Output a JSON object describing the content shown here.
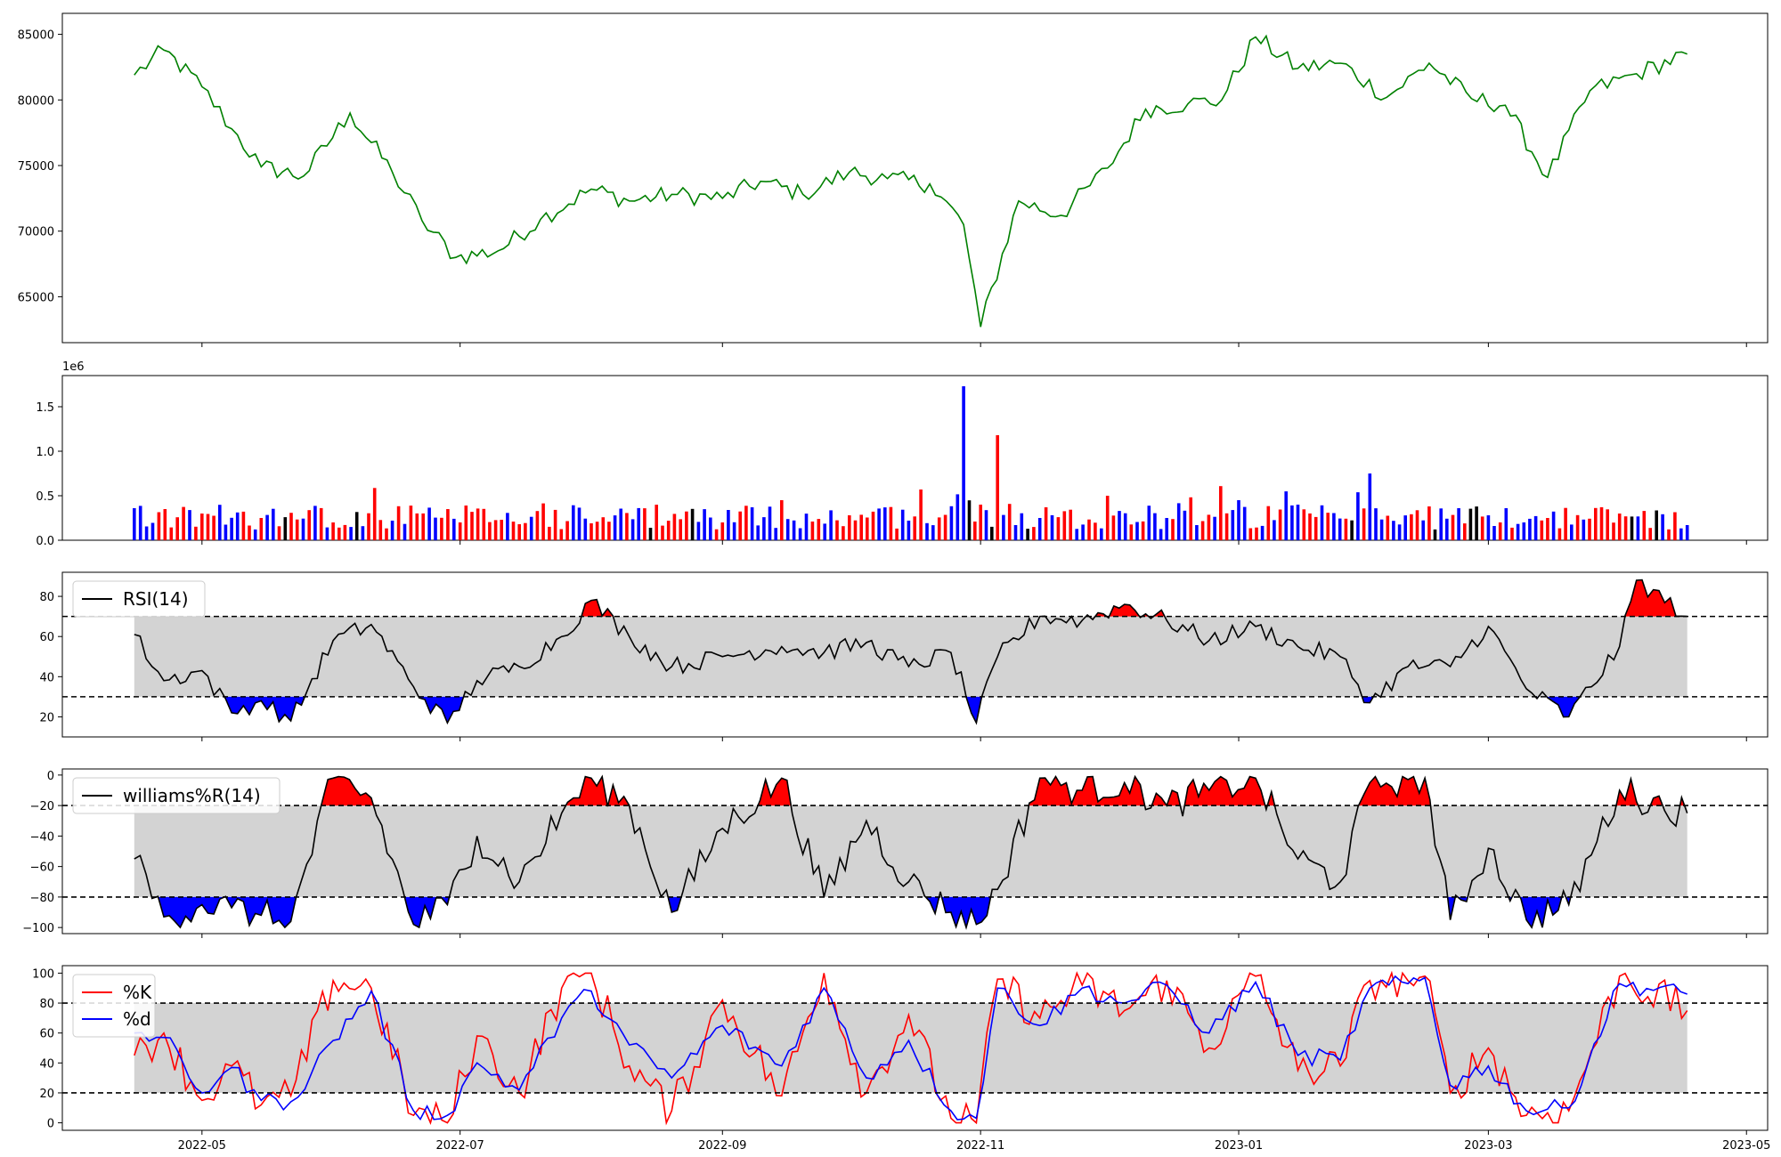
{
  "page": {
    "background": "#ffffff"
  },
  "chart_data": [
    {
      "type": "line",
      "panel": "price",
      "color": "#008000",
      "ylim": [
        61500,
        86600
      ],
      "yticks": [
        "65000",
        "70000",
        "75000",
        "80000",
        "85000"
      ],
      "ytick_values": [
        65000,
        70000,
        75000,
        80000,
        85000
      ],
      "x": [
        "2022-04-15",
        "2022-04-22",
        "2022-05-01",
        "2022-05-08",
        "2022-05-15",
        "2022-05-25",
        "2022-06-05",
        "2022-06-15",
        "2022-06-22",
        "2022-06-30",
        "2022-07-10",
        "2022-07-20",
        "2022-08-01",
        "2022-08-10",
        "2022-08-20",
        "2022-09-01",
        "2022-09-10",
        "2022-09-20",
        "2022-10-01",
        "2022-10-10",
        "2022-10-20",
        "2022-10-28",
        "2022-11-01",
        "2022-11-10",
        "2022-11-20",
        "2022-12-01",
        "2022-12-10",
        "2022-12-20",
        "2022-12-28",
        "2023-01-05",
        "2023-01-15",
        "2023-01-25",
        "2023-02-05",
        "2023-02-15",
        "2023-02-25",
        "2023-03-05",
        "2023-03-15",
        "2023-03-25",
        "2023-04-05",
        "2023-04-17"
      ],
      "values": [
        81900,
        83800,
        81000,
        77800,
        74900,
        74200,
        79000,
        74500,
        70800,
        68000,
        68500,
        70900,
        73200,
        72300,
        72800,
        72500,
        73800,
        72800,
        74500,
        74000,
        73600,
        70500,
        62700,
        72300,
        71200,
        74800,
        79300,
        79700,
        80000,
        84800,
        82400,
        82800,
        80200,
        82800,
        80100,
        79600,
        74100,
        80700,
        82000,
        83500
      ]
    },
    {
      "type": "bar",
      "panel": "volume",
      "scale_label": "1e6",
      "ylim": [
        0,
        1.85
      ],
      "yticks": [
        "0.0",
        "0.5",
        "1.0",
        "1.5"
      ],
      "ytick_values": [
        0,
        0.5,
        1.0,
        1.5
      ],
      "colors": {
        "up": "#ff0000",
        "down": "#0000ff",
        "flat": "#000000"
      },
      "x": [
        "2022-04-15",
        "2022-05-01",
        "2022-05-15",
        "2022-06-01",
        "2022-06-15",
        "2022-07-01",
        "2022-07-15",
        "2022-08-01",
        "2022-08-15",
        "2022-09-01",
        "2022-09-15",
        "2022-10-01",
        "2022-10-15",
        "2022-10-28",
        "2022-11-01",
        "2022-11-05",
        "2022-11-15",
        "2022-12-01",
        "2022-12-15",
        "2023-01-01",
        "2023-01-15",
        "2023-02-01",
        "2023-02-15",
        "2023-03-01",
        "2023-03-15",
        "2023-04-01",
        "2023-04-17"
      ],
      "values": [
        0.36,
        0.3,
        0.25,
        0.2,
        0.22,
        0.2,
        0.18,
        0.19,
        0.14,
        0.2,
        0.45,
        0.28,
        0.22,
        1.73,
        0.4,
        1.18,
        0.25,
        0.5,
        0.25,
        0.45,
        0.4,
        0.75,
        0.38,
        0.28,
        0.25,
        0.3,
        0.17
      ],
      "signs": [
        "down",
        "up",
        "up",
        "up",
        "down",
        "up",
        "up",
        "up",
        "flat",
        "up",
        "up",
        "up",
        "down",
        "down",
        "up",
        "up",
        "down",
        "up",
        "down",
        "down",
        "down",
        "down",
        "up",
        "down",
        "up",
        "up",
        "down"
      ]
    },
    {
      "type": "line",
      "panel": "rsi",
      "legend": "RSI(14)",
      "ylim": [
        10,
        92
      ],
      "yticks": [
        "20",
        "40",
        "60",
        "80"
      ],
      "ytick_values": [
        20,
        40,
        60,
        80
      ],
      "bands": [
        30,
        70
      ],
      "band_color": "#d3d3d3",
      "over_color": "#ff0000",
      "under_color": "#0000ff",
      "x": [
        "2022-04-15",
        "2022-04-22",
        "2022-05-01",
        "2022-05-08",
        "2022-05-15",
        "2022-05-22",
        "2022-06-01",
        "2022-06-10",
        "2022-06-20",
        "2022-06-28",
        "2022-07-05",
        "2022-07-15",
        "2022-07-25",
        "2022-08-01",
        "2022-08-10",
        "2022-08-20",
        "2022-09-01",
        "2022-09-15",
        "2022-09-25",
        "2022-10-05",
        "2022-10-15",
        "2022-10-25",
        "2022-10-31",
        "2022-11-05",
        "2022-11-15",
        "2022-11-25",
        "2022-12-05",
        "2022-12-15",
        "2022-12-25",
        "2023-01-05",
        "2023-01-15",
        "2023-01-25",
        "2023-02-01",
        "2023-02-10",
        "2023-02-20",
        "2023-03-01",
        "2023-03-10",
        "2023-03-20",
        "2023-04-01",
        "2023-04-05",
        "2023-04-17"
      ],
      "values": [
        61,
        38,
        43,
        22,
        28,
        18,
        58,
        66,
        35,
        17,
        38,
        45,
        60,
        78,
        60,
        45,
        50,
        55,
        52,
        57,
        45,
        52,
        17,
        50,
        70,
        68,
        76,
        68,
        58,
        65,
        55,
        50,
        27,
        45,
        45,
        65,
        34,
        20,
        55,
        88,
        70
      ]
    },
    {
      "type": "line",
      "panel": "williams",
      "legend": "williams%R(14)",
      "ylim": [
        -104,
        4
      ],
      "yticks": [
        "0",
        "−20",
        "−40",
        "−60",
        "−80",
        "−100"
      ],
      "ytick_values": [
        0,
        -20,
        -40,
        -60,
        -80,
        -100
      ],
      "bands": [
        -80,
        -20
      ],
      "band_color": "#d3d3d3",
      "over_color": "#ff0000",
      "under_color": "#0000ff",
      "x": [
        "2022-04-15",
        "2022-04-22",
        "2022-05-01",
        "2022-05-08",
        "2022-05-15",
        "2022-05-22",
        "2022-06-01",
        "2022-06-10",
        "2022-06-20",
        "2022-06-28",
        "2022-07-05",
        "2022-07-15",
        "2022-07-25",
        "2022-08-01",
        "2022-08-10",
        "2022-08-20",
        "2022-09-01",
        "2022-09-15",
        "2022-09-25",
        "2022-10-05",
        "2022-10-15",
        "2022-10-25",
        "2022-10-31",
        "2022-11-05",
        "2022-11-15",
        "2022-11-25",
        "2022-12-05",
        "2022-12-15",
        "2022-12-25",
        "2023-01-05",
        "2023-01-15",
        "2023-01-25",
        "2023-02-01",
        "2023-02-10",
        "2023-02-14",
        "2023-02-20",
        "2023-03-01",
        "2023-03-10",
        "2023-03-20",
        "2023-04-01",
        "2023-04-17"
      ],
      "values": [
        -55,
        -93,
        -85,
        -87,
        -92,
        -96,
        -2,
        -15,
        -98,
        -85,
        -40,
        -70,
        -25,
        -2,
        -20,
        -90,
        -35,
        -2,
        -80,
        -30,
        -70,
        -90,
        -98,
        -75,
        -2,
        -10,
        -5,
        -20,
        -10,
        -2,
        -55,
        -70,
        -5,
        -3,
        -2,
        -95,
        -48,
        -95,
        -85,
        -10,
        -25
      ]
    },
    {
      "type": "line",
      "panel": "stochastic",
      "legend_entries": [
        "%K",
        "%d"
      ],
      "series": [
        {
          "name": "%K",
          "color": "#ff0000",
          "values": [
            45,
            60,
            15,
            38,
            12,
            18,
            95,
            90,
            5,
            0,
            58,
            20,
            90,
            100,
            38,
            8,
            82,
            18,
            100,
            20,
            72,
            3,
            0,
            96,
            70,
            92,
            75,
            95,
            50,
            98,
            35,
            38,
            95,
            95,
            98,
            20,
            50,
            5,
            8,
            98,
            75
          ]
        },
        {
          "name": "%d",
          "color": "#0000ff",
          "values": [
            60,
            57,
            20,
            37,
            15,
            14,
            55,
            88,
            8,
            5,
            40,
            22,
            70,
            88,
            52,
            30,
            65,
            38,
            90,
            30,
            55,
            8,
            3,
            90,
            65,
            90,
            80,
            92,
            60,
            94,
            45,
            42,
            90,
            93,
            97,
            25,
            38,
            8,
            10,
            93,
            86
          ]
        }
      ],
      "x": [
        "2022-04-15",
        "2022-04-22",
        "2022-05-01",
        "2022-05-08",
        "2022-05-15",
        "2022-05-22",
        "2022-06-01",
        "2022-06-10",
        "2022-06-20",
        "2022-06-28",
        "2022-07-05",
        "2022-07-15",
        "2022-07-25",
        "2022-08-01",
        "2022-08-10",
        "2022-08-20",
        "2022-09-01",
        "2022-09-15",
        "2022-09-25",
        "2022-10-05",
        "2022-10-15",
        "2022-10-25",
        "2022-10-31",
        "2022-11-05",
        "2022-11-15",
        "2022-11-25",
        "2022-12-05",
        "2022-12-15",
        "2022-12-25",
        "2023-01-05",
        "2023-01-15",
        "2023-01-25",
        "2023-02-01",
        "2023-02-10",
        "2023-02-14",
        "2023-02-20",
        "2023-03-01",
        "2023-03-10",
        "2023-03-20",
        "2023-04-01",
        "2023-04-17"
      ],
      "ylim": [
        -5,
        105
      ],
      "yticks": [
        "0",
        "20",
        "40",
        "60",
        "80",
        "100"
      ],
      "ytick_values": [
        0,
        20,
        40,
        60,
        80,
        100
      ],
      "bands": [
        20,
        80
      ],
      "band_color": "#d3d3d3"
    }
  ],
  "xaxis": {
    "domain": [
      "2022-03-29",
      "2023-05-06"
    ],
    "ticks": [
      "2022-05",
      "2022-07",
      "2022-09",
      "2022-11",
      "2023-01",
      "2023-03",
      "2023-05"
    ],
    "tick_dates": [
      "2022-05-01",
      "2022-07-01",
      "2022-09-01",
      "2022-11-01",
      "2023-01-01",
      "2023-03-01",
      "2023-05-01"
    ],
    "band_start": "2022-04-15",
    "band_end": "2023-04-17"
  }
}
